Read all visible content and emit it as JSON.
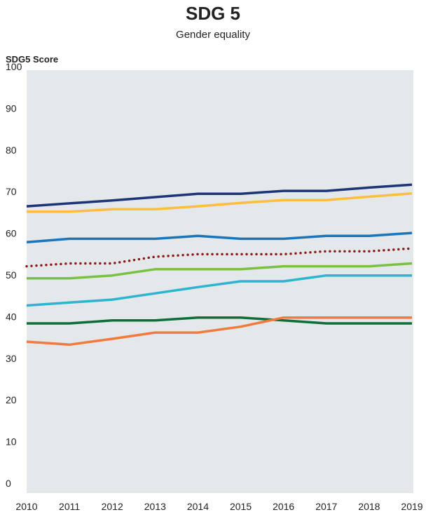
{
  "chart_data": {
    "type": "line",
    "title": "SDG 5",
    "subtitle": "Gender equality",
    "ylabel": "SDG5 Score",
    "xlabel": "",
    "ylim": [
      0,
      100
    ],
    "yticks": [
      0,
      10,
      20,
      30,
      40,
      50,
      60,
      70,
      80,
      90,
      100
    ],
    "x": [
      "2010",
      "2011",
      "2012",
      "2013",
      "2014",
      "2015",
      "2016",
      "2017",
      "2018",
      "2019"
    ],
    "grid": false,
    "legend": "none",
    "series": [
      {
        "color": "#1c3578",
        "style": "solid",
        "values": [
          68.0,
          68.7,
          69.4,
          70.2,
          71.0,
          71.0,
          71.7,
          71.7,
          72.5,
          73.2
        ]
      },
      {
        "color": "#fbbe3d",
        "style": "solid",
        "values": [
          66.7,
          66.7,
          67.3,
          67.3,
          68.0,
          68.8,
          69.5,
          69.5,
          70.3,
          71.1
        ]
      },
      {
        "color": "#1b75bb",
        "style": "solid",
        "values": [
          59.4,
          60.2,
          60.2,
          60.2,
          60.9,
          60.2,
          60.2,
          60.9,
          60.9,
          61.6
        ]
      },
      {
        "color": "#8b1a1a",
        "style": "dotted",
        "values": [
          53.6,
          54.3,
          54.3,
          55.9,
          56.5,
          56.5,
          56.5,
          57.2,
          57.2,
          57.9
        ]
      },
      {
        "color": "#7ac143",
        "style": "solid",
        "values": [
          50.7,
          50.7,
          51.4,
          52.9,
          52.9,
          52.9,
          53.6,
          53.6,
          53.6,
          54.3
        ]
      },
      {
        "color": "#2db5d0",
        "style": "solid",
        "values": [
          44.2,
          44.9,
          45.6,
          47.1,
          48.6,
          50.0,
          50.0,
          51.4,
          51.4,
          51.4
        ]
      },
      {
        "color": "#0d6e3a",
        "style": "solid",
        "values": [
          39.9,
          39.9,
          40.6,
          40.6,
          41.3,
          41.3,
          40.6,
          39.9,
          39.9,
          39.9
        ]
      },
      {
        "color": "#f07b3c",
        "style": "solid",
        "values": [
          35.5,
          34.8,
          36.2,
          37.7,
          37.7,
          39.1,
          41.3,
          41.3,
          41.3,
          41.3
        ]
      }
    ]
  }
}
